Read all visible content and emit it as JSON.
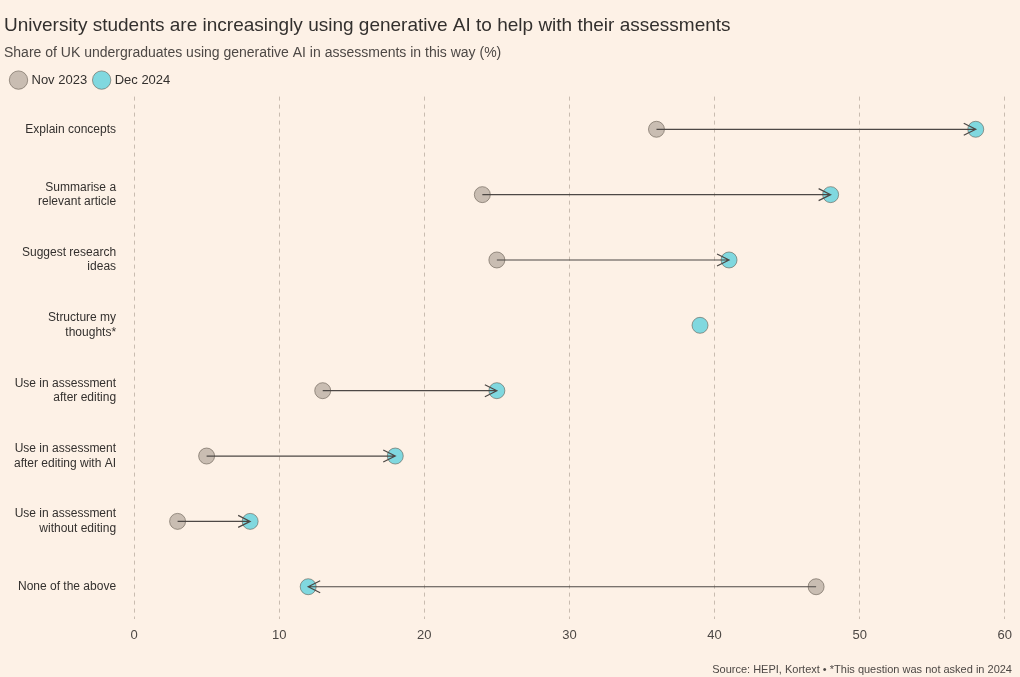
{
  "chart_data": {
    "type": "dumbbell",
    "title": "University students are increasingly using generative AI to help with their assessments",
    "subtitle": "Share of UK undergraduates using generative AI in assessments in this way (%)",
    "source": "Source: HEPI, Kortext • *This question was not asked in 2024",
    "categories": [
      "Explain concepts",
      "Summarise a relevant article",
      "Suggest research ideas",
      "Structure my thoughts*",
      "Use in assessment after editing",
      "Use in assessment after editing with AI",
      "Use in assessment without editing",
      "None of the above"
    ],
    "series": [
      {
        "name": "Nov 2023",
        "color": "#c9bdb2",
        "values": [
          36,
          24,
          25,
          null,
          13,
          5,
          3,
          47
        ]
      },
      {
        "name": "Dec 2024",
        "color": "#80d8df",
        "values": [
          58,
          48,
          41,
          39,
          25,
          18,
          8,
          12
        ]
      }
    ],
    "orientation": "horizontal",
    "marker": "circle",
    "xlim": [
      0,
      60
    ],
    "xticks": [
      0,
      10,
      20,
      30,
      40,
      50,
      60
    ],
    "grid": true,
    "legend": "top"
  }
}
